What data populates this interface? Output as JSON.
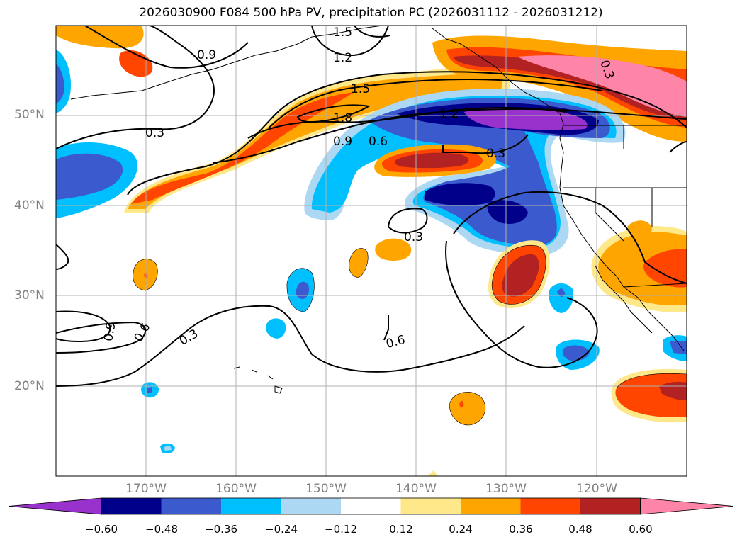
{
  "title": "2026030900 F084 500 hPa PV, precipitation PC (2026031112 - 2026031212)",
  "map": {
    "lon_range": [
      -180,
      -110
    ],
    "lat_range": [
      10,
      60
    ],
    "lat_labels": [
      {
        "lat": 50,
        "text": "50°N"
      },
      {
        "lat": 40,
        "text": "40°N"
      },
      {
        "lat": 30,
        "text": "30°N"
      },
      {
        "lat": 20,
        "text": "20°N"
      }
    ],
    "lon_labels": [
      {
        "lon": -170,
        "text": "170°W"
      },
      {
        "lon": -160,
        "text": "160°W"
      },
      {
        "lon": -150,
        "text": "150°W"
      },
      {
        "lon": -140,
        "text": "140°W"
      },
      {
        "lon": -130,
        "text": "130°W"
      },
      {
        "lon": -120,
        "text": "120°W"
      }
    ],
    "pv_contour_labels": [
      "1.5",
      "1.2",
      "0.9",
      "1.5",
      "1.8",
      "0.9",
      "0.6",
      "0.3",
      "0.3",
      "0.3",
      "0.9",
      "0.6",
      "0.3",
      "0.6",
      "0.3",
      "1.2"
    ]
  },
  "colorbar": {
    "ticks": [
      "−0.60",
      "−0.48",
      "−0.36",
      "−0.24",
      "−0.12",
      "0.12",
      "0.24",
      "0.36",
      "0.48",
      "0.60"
    ],
    "colors": [
      "#9932cc",
      "#00008b",
      "#3a5acd",
      "#00bfff",
      "#add8f4",
      "#ffffff",
      "#ffe88a",
      "#ffa500",
      "#ff4500",
      "#b22222",
      "#ff85a8"
    ]
  }
}
